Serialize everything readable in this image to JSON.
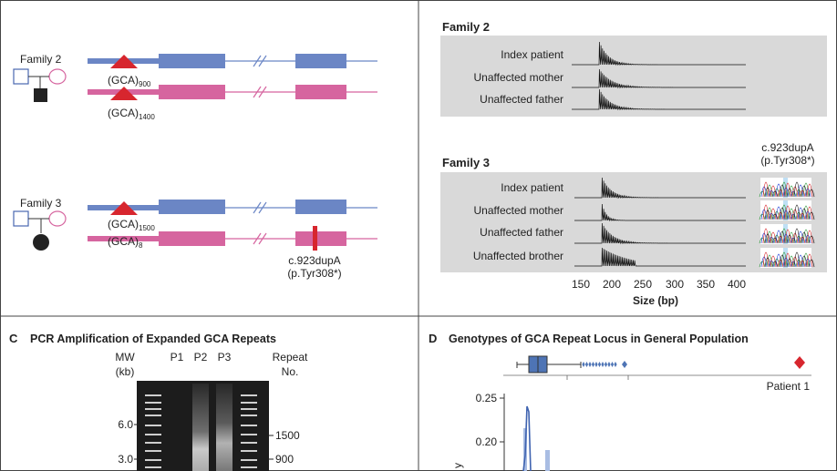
{
  "panelA": {
    "families": [
      {
        "label": "Family 2",
        "allele1": "(GCA)",
        "allele1_sub": "900",
        "allele2": "(GCA)",
        "allele2_sub": "1400"
      },
      {
        "label": "Family 3",
        "allele1": "(GCA)",
        "allele1_sub": "1500",
        "allele2": "(GCA)",
        "allele2_sub": "8",
        "variant": "c.923dupA",
        "variant_protein": "(p.Tyr308*)"
      }
    ]
  },
  "panelB": {
    "family2": {
      "title": "Family 2",
      "rows": [
        "Index patient",
        "Unaffected mother",
        "Unaffected father"
      ]
    },
    "family3": {
      "title": "Family 3",
      "rows": [
        "Index patient",
        "Unaffected mother",
        "Unaffected father",
        "Unaffected brother"
      ]
    },
    "seq_label": "c.923dupA",
    "seq_label2": "(p.Tyr308*)",
    "x_ticks": [
      "150",
      "200",
      "250",
      "300",
      "350",
      "400"
    ],
    "x_label": "Size (bp)"
  },
  "panelC": {
    "letter": "C",
    "title": "PCR Amplification of Expanded GCA Repeats",
    "mw_label": "MW",
    "mw_unit": "(kb)",
    "lanes": [
      "P1",
      "P2",
      "P3"
    ],
    "repeat_label": "Repeat",
    "repeat_label2": "No.",
    "mw_ticks": [
      "6.0",
      "3.0"
    ],
    "repeat_ticks": [
      "1500",
      "900"
    ]
  },
  "panelD": {
    "letter": "D",
    "title": "Genotypes of GCA Repeat Locus in General Population",
    "patient_label": "Patient 1",
    "y_ticks": [
      "0.25",
      "0.20"
    ],
    "y_label_partial": "y"
  },
  "colors": {
    "blue": "#6b86c5",
    "pink": "#d6659f",
    "red": "#d7262e",
    "gel_bg": "#1c1c1c",
    "panel_grey": "#d9d9d9"
  }
}
